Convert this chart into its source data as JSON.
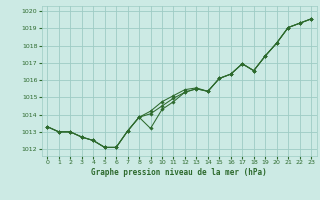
{
  "title": "Graphe pression niveau de la mer (hPa)",
  "bg_color": "#cceae4",
  "grid_color": "#9eccc4",
  "line_color": "#2d6a2d",
  "xlim": [
    -0.5,
    23.5
  ],
  "ylim": [
    1011.6,
    1020.3
  ],
  "yticks": [
    1012,
    1013,
    1014,
    1015,
    1016,
    1017,
    1018,
    1019,
    1020
  ],
  "xticks": [
    0,
    1,
    2,
    3,
    4,
    5,
    6,
    7,
    8,
    9,
    10,
    11,
    12,
    13,
    14,
    15,
    16,
    17,
    18,
    19,
    20,
    21,
    22,
    23
  ],
  "series": [
    [
      1013.3,
      1013.0,
      1013.0,
      1012.7,
      1012.5,
      1012.1,
      1012.1,
      1013.05,
      1013.85,
      1014.2,
      1014.75,
      1015.1,
      1015.45,
      1015.55,
      1015.35,
      1016.1,
      1016.35,
      1016.95,
      1016.55,
      1017.4,
      1018.15,
      1019.05,
      1019.3,
      1019.55
    ],
    [
      1013.3,
      1013.0,
      1013.0,
      1012.7,
      1012.5,
      1012.1,
      1012.1,
      1013.05,
      1013.85,
      1013.2,
      1014.3,
      1014.75,
      1015.3,
      1015.5,
      1015.35,
      1016.1,
      1016.35,
      1016.95,
      1016.55,
      1017.4,
      1018.15,
      1019.05,
      1019.3,
      1019.55
    ],
    [
      1013.3,
      1013.0,
      1013.0,
      1012.7,
      1012.5,
      1012.1,
      1012.1,
      1013.05,
      1013.85,
      1014.05,
      1014.5,
      1014.95,
      1015.3,
      1015.5,
      1015.35,
      1016.1,
      1016.35,
      1016.95,
      1016.55,
      1017.4,
      1018.15,
      1019.05,
      1019.3,
      1019.55
    ]
  ]
}
